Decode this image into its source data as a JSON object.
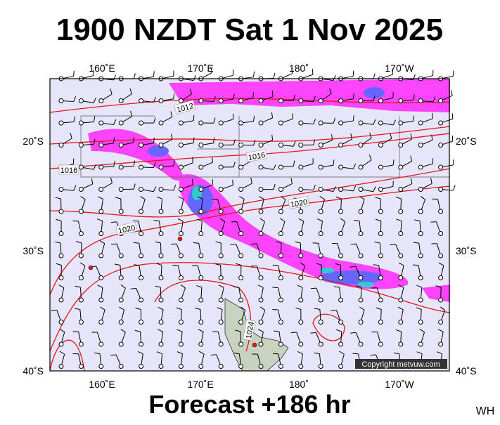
{
  "header": {
    "title": "1900 NZDT Sat 1 Nov 2025"
  },
  "map": {
    "top_labels": [
      "160˚E",
      "170˚E",
      "180˚",
      "170˚W"
    ],
    "bottom_labels": [
      "160˚E",
      "170˚E",
      "180˚",
      "170˚W"
    ],
    "left_labels": [
      "20˚S",
      "30˚S",
      "40˚S"
    ],
    "right_labels": [
      "20˚S",
      "30˚S",
      "40˚S"
    ],
    "isobar_labels": [
      "1012",
      "1016",
      "1016",
      "1020",
      "1020",
      "1024"
    ],
    "copyright": "Copyright metvuw.com"
  },
  "footer": {
    "forecast": "Forecast +186 hr",
    "initials": "WH"
  }
}
